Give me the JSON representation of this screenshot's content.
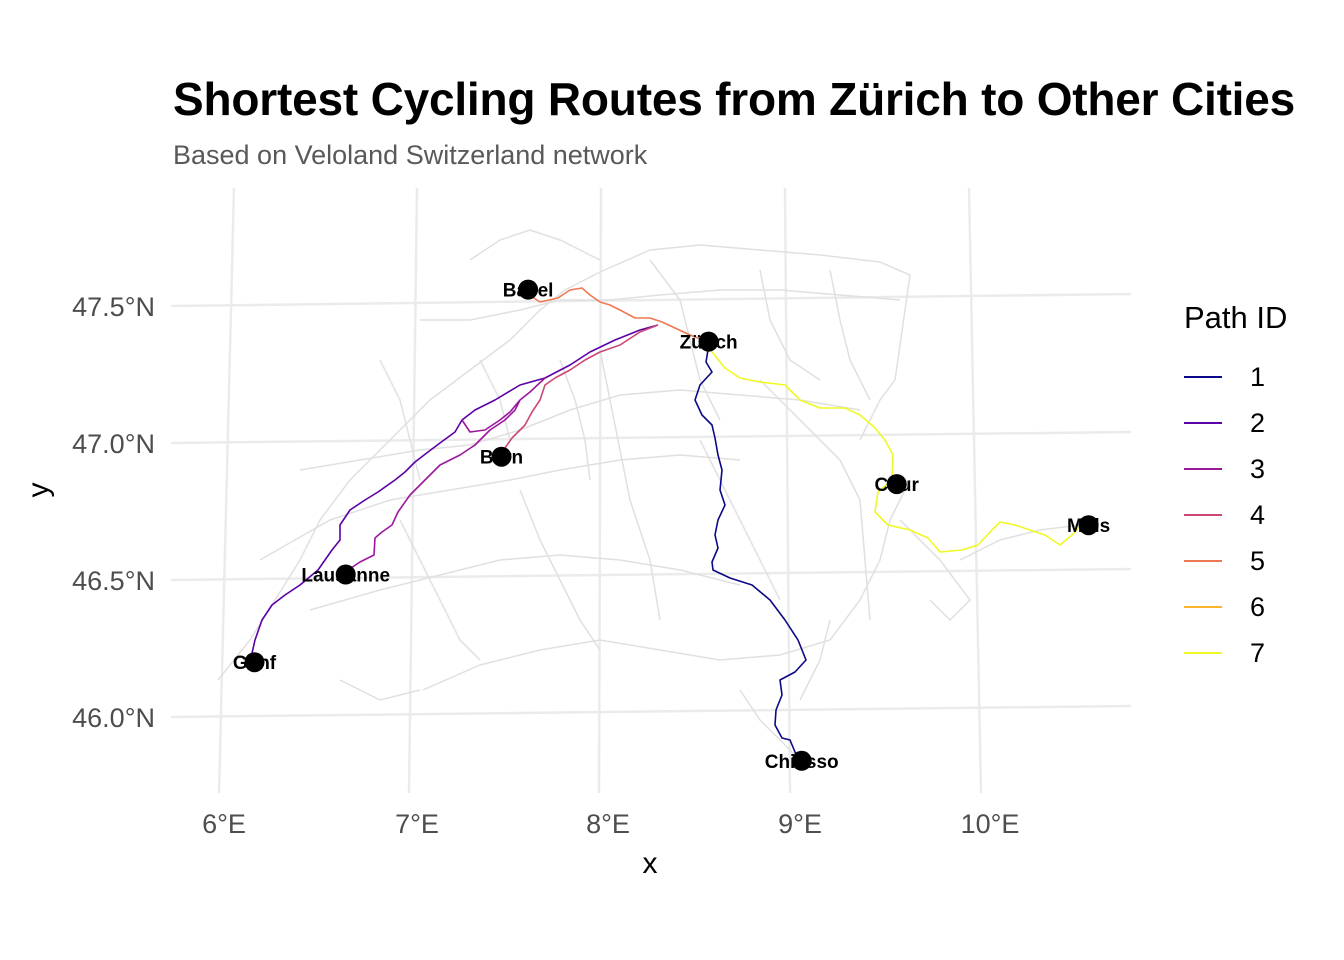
{
  "title": "Shortest Cycling Routes from Zürich to Other Cities",
  "subtitle": "Based on Veloland Switzerland network",
  "axes": {
    "xlabel": "x",
    "ylabel": "y",
    "x_ticks": [
      "6°E",
      "7°E",
      "8°E",
      "9°E",
      "10°E"
    ],
    "y_ticks": [
      "47.5°N",
      "47.0°N",
      "46.5°N",
      "46.0°N"
    ]
  },
  "legend": {
    "title": "Path ID",
    "entries": [
      {
        "label": "1",
        "color": "#0d0887"
      },
      {
        "label": "2",
        "color": "#5c01a6"
      },
      {
        "label": "3",
        "color": "#9c179e"
      },
      {
        "label": "4",
        "color": "#cc4778"
      },
      {
        "label": "5",
        "color": "#ed7953"
      },
      {
        "label": "6",
        "color": "#fdb42f"
      },
      {
        "label": "7",
        "color": "#f0f921"
      }
    ]
  },
  "map": {
    "background_network_color": "#e0e0e0",
    "cities": [
      {
        "name": "Zürich",
        "lon": 8.54,
        "lat": 47.37
      },
      {
        "name": "Basel",
        "lon": 7.59,
        "lat": 47.56
      },
      {
        "name": "Bern",
        "lon": 7.45,
        "lat": 46.95
      },
      {
        "name": "Lausanne",
        "lon": 6.63,
        "lat": 46.52
      },
      {
        "name": "Genf",
        "lon": 6.15,
        "lat": 46.2
      },
      {
        "name": "Chur",
        "lon": 9.53,
        "lat": 46.85
      },
      {
        "name": "Müls",
        "lon": 10.54,
        "lat": 46.7
      },
      {
        "name": "Chiasso",
        "lon": 9.03,
        "lat": 45.84
      }
    ]
  }
}
